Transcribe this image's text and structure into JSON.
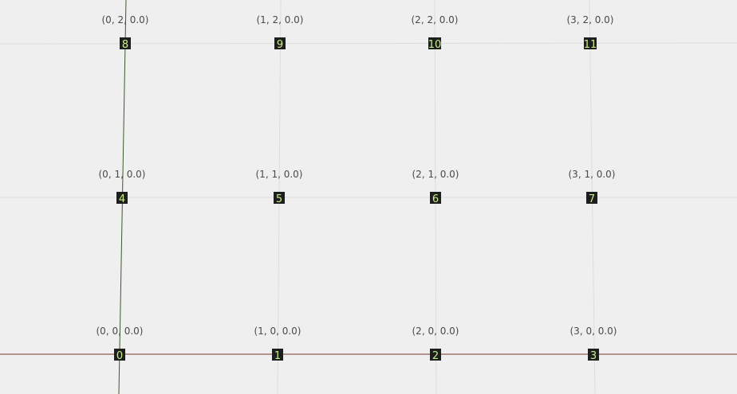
{
  "colors": {
    "background": "#efefef",
    "grid_line": "#dddddd",
    "x_axis": "#7a3a2e",
    "y_axis": "#3a5a2a",
    "marker_bg": "#1e1e1e",
    "marker_text": "#c8f08a",
    "label_text": "#4a4a4a"
  },
  "points": [
    {
      "index": "0",
      "label": "(0, 0, 0.0)"
    },
    {
      "index": "1",
      "label": "(1, 0, 0.0)"
    },
    {
      "index": "2",
      "label": "(2, 0, 0.0)"
    },
    {
      "index": "3",
      "label": "(3, 0, 0.0)"
    },
    {
      "index": "4",
      "label": "(0, 1, 0.0)"
    },
    {
      "index": "5",
      "label": "(1, 1, 0.0)"
    },
    {
      "index": "6",
      "label": "(2, 1, 0.0)"
    },
    {
      "index": "7",
      "label": "(3, 1, 0.0)"
    },
    {
      "index": "8",
      "label": "(0, 2, 0.0)"
    },
    {
      "index": "9",
      "label": "(1, 2, 0.0)"
    },
    {
      "index": "10",
      "label": "(2, 2, 0.0)"
    },
    {
      "index": "11",
      "label": "(3, 2, 0.0)"
    }
  ]
}
